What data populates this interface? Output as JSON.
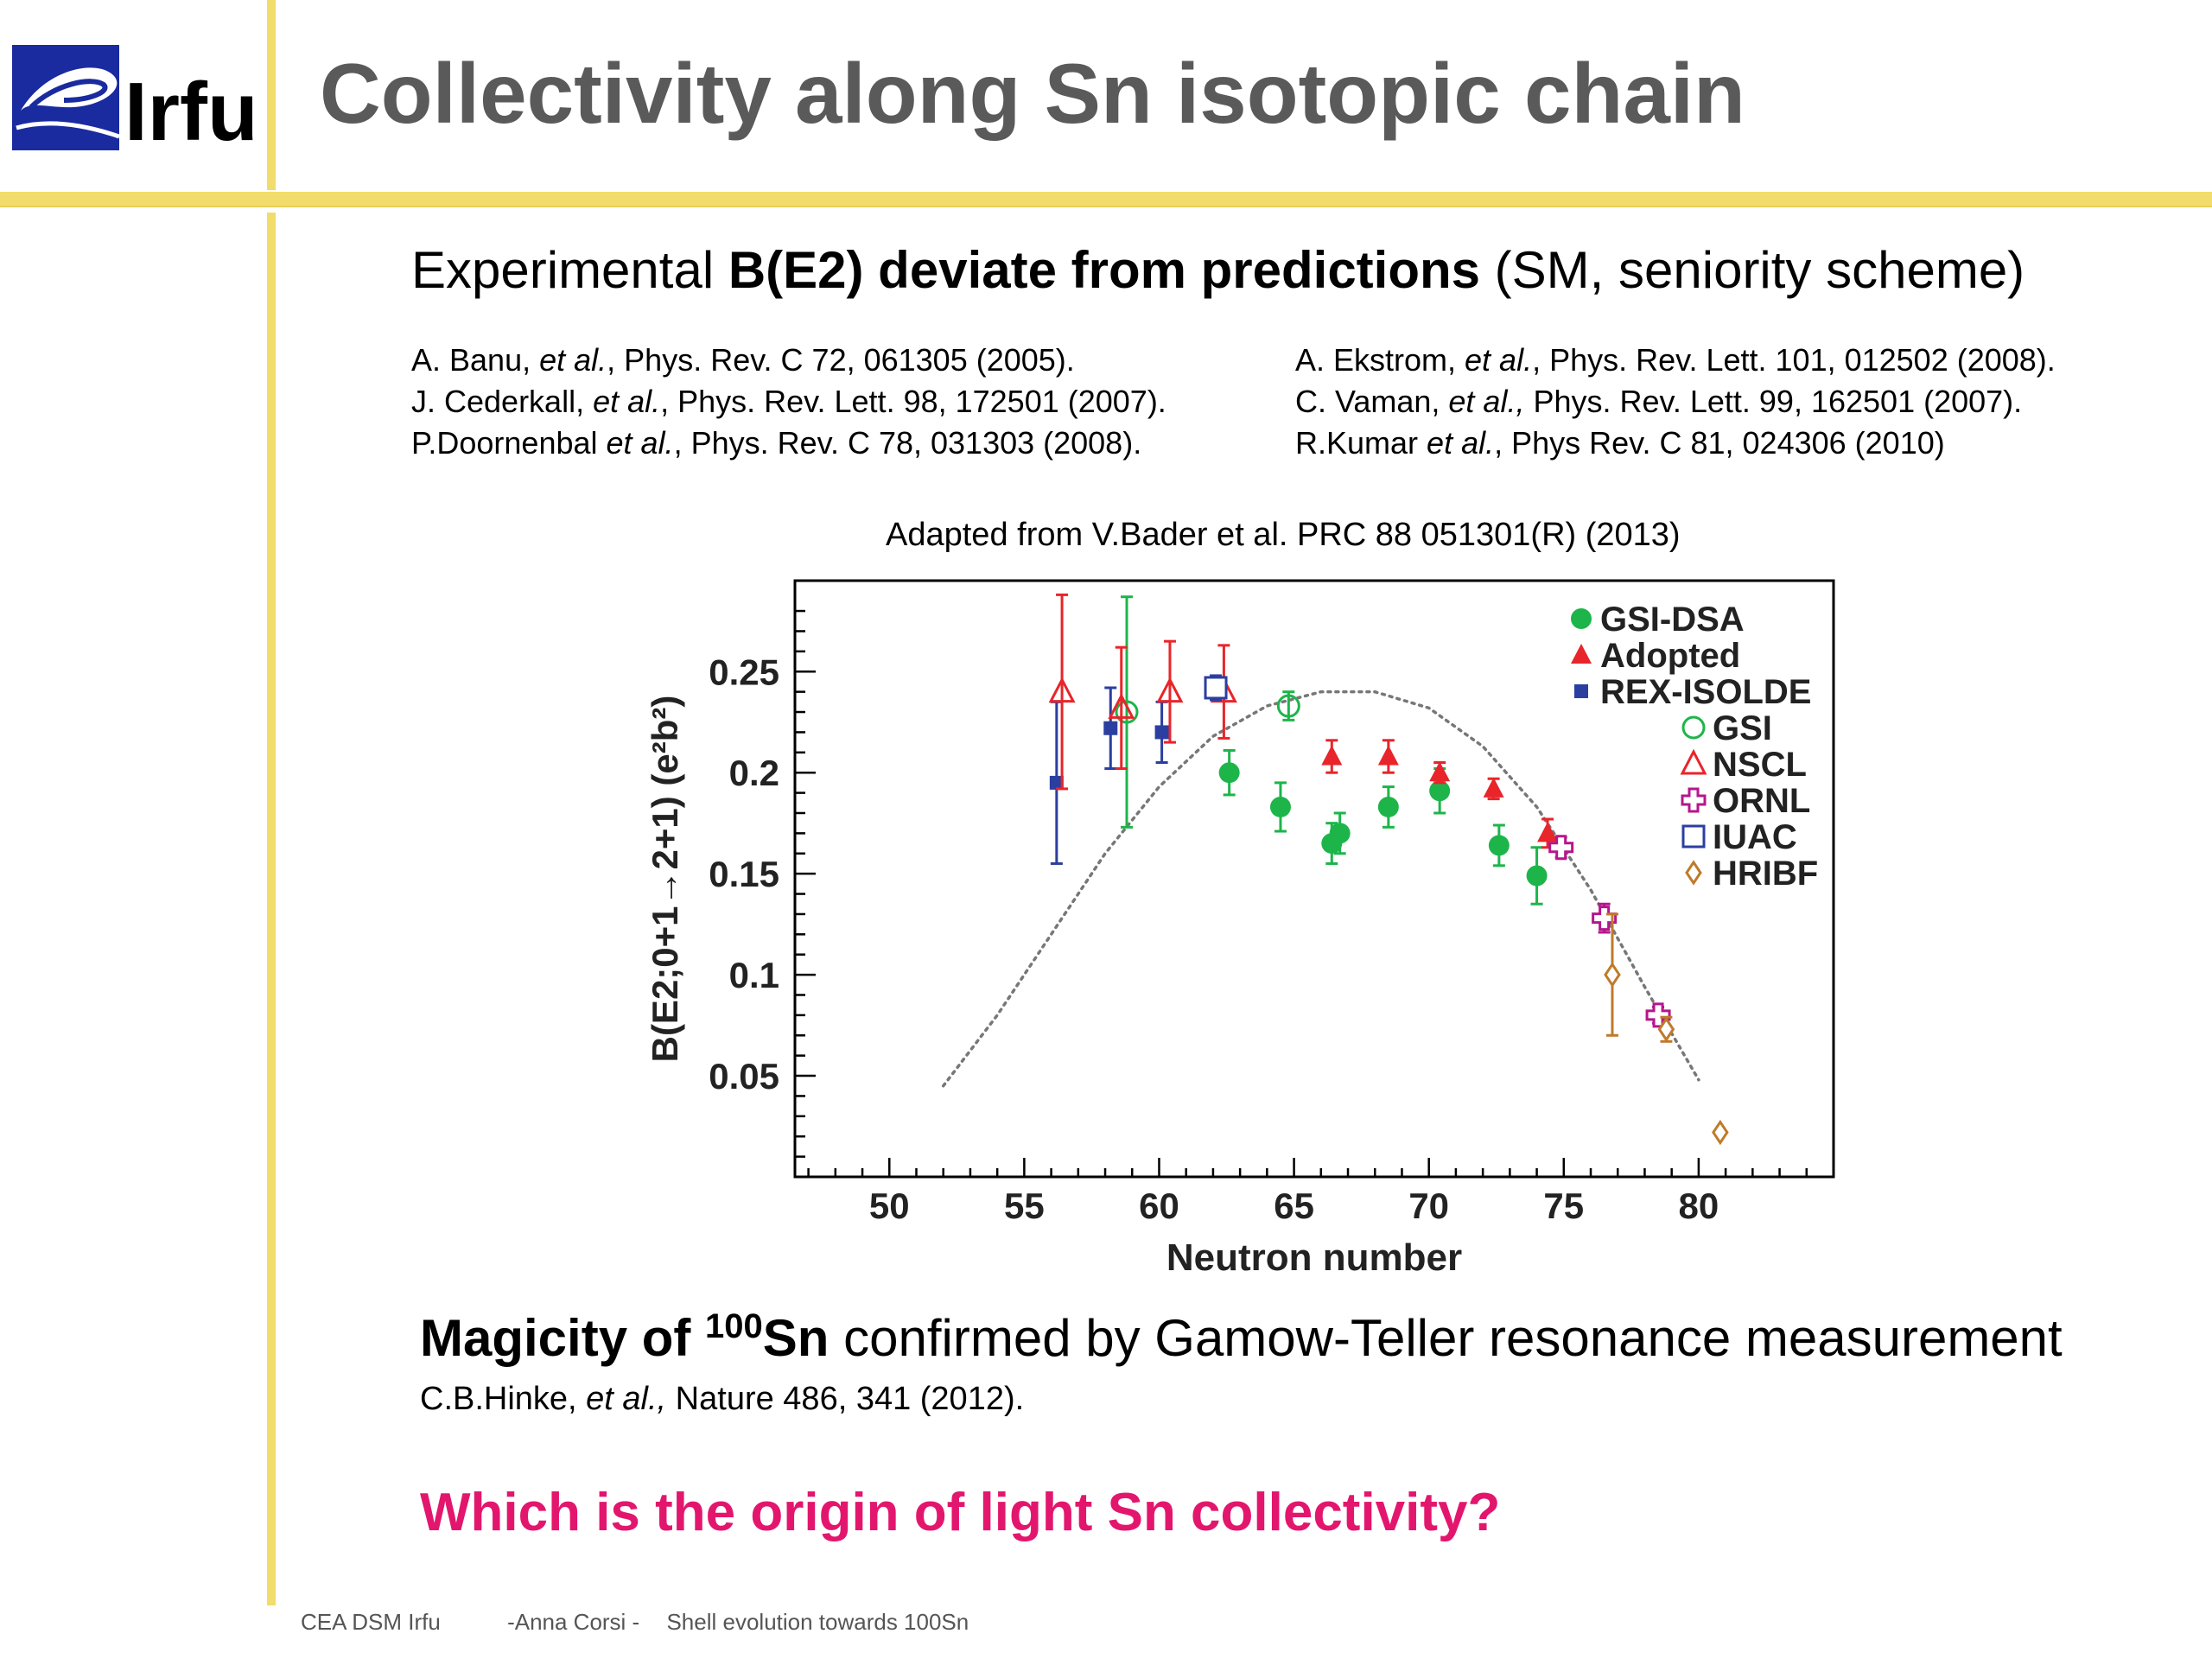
{
  "header": {
    "logo_text": "Irfu",
    "title": "Collectivity along Sn isotopic chain"
  },
  "subhead": {
    "pre": "Experimental ",
    "bold": "B(E2) deviate from predictions",
    "post": " (SM, seniority scheme)"
  },
  "references_left": [
    {
      "a": "A. Banu, ",
      "i": "et al.",
      "b": ", Phys. Rev. C 72, 061305 (2005)."
    },
    {
      "a": "J. Cederkall, ",
      "i": "et al.",
      "b": ", Phys. Rev. Lett. 98, 172501 (2007)."
    },
    {
      "a": "P.Doornenbal ",
      "i": "et al.",
      "b": ", Phys. Rev. C 78, 031303 (2008)."
    }
  ],
  "references_right": [
    {
      "a": "A. Ekstrom, ",
      "i": "et al.",
      "b": ", Phys. Rev. Lett. 101, 012502 (2008)."
    },
    {
      "a": "C. Vaman, ",
      "i": "et al.,",
      "b": " Phys. Rev. Lett. 99, 162501 (2007)."
    },
    {
      "a": "R.Kumar ",
      "i": "et al.",
      "b": ", Phys Rev. C 81, 024306 (2010)"
    }
  ],
  "figure_caption": "Adapted from V.Bader et al. PRC 88 051301(R) (2013)",
  "chart_data": {
    "type": "scatter",
    "xlabel": "Neutron number",
    "ylabel": "B(E2;0+1→2+1) (e²b²)",
    "xlim": [
      46.5,
      85
    ],
    "ylim": [
      0,
      0.295
    ],
    "x_ticks": [
      50,
      55,
      60,
      65,
      70,
      75,
      80
    ],
    "y_ticks": [
      0.05,
      0.1,
      0.15,
      0.2,
      0.25
    ],
    "legend_position": "top-right",
    "series": [
      {
        "name": "GSI-DSA",
        "marker": "filled-circle",
        "color": "#1db54a",
        "points": [
          [
            62.6,
            0.2,
            0.011
          ],
          [
            64.5,
            0.183,
            0.012
          ],
          [
            66.4,
            0.165,
            0.01
          ],
          [
            66.7,
            0.17,
            0.01
          ],
          [
            68.5,
            0.183,
            0.01
          ],
          [
            70.4,
            0.191,
            0.011
          ],
          [
            72.6,
            0.164,
            0.01
          ],
          [
            74,
            0.149,
            0.014
          ]
        ]
      },
      {
        "name": "Adopted",
        "marker": "filled-triangle",
        "color": "#e8252a",
        "points": [
          [
            66.4,
            0.208,
            0.008
          ],
          [
            68.5,
            0.208,
            0.008
          ],
          [
            70.4,
            0.2,
            0.005
          ],
          [
            72.4,
            0.192,
            0.005
          ],
          [
            74.4,
            0.17,
            0.007
          ]
        ]
      },
      {
        "name": "REX-ISOLDE",
        "marker": "filled-square",
        "color": "#2b3fa0",
        "points": [
          [
            56.2,
            0.195,
            0.04
          ],
          [
            58.2,
            0.222,
            0.02
          ],
          [
            60.1,
            0.22,
            0.015
          ]
        ]
      },
      {
        "name": "GSI",
        "marker": "open-circle",
        "color": "#1db54a",
        "points": [
          [
            58.8,
            0.23,
            0.057
          ],
          [
            64.8,
            0.233,
            0.007
          ]
        ]
      },
      {
        "name": "NSCL",
        "marker": "open-triangle",
        "color": "#e8252a",
        "points": [
          [
            56.4,
            0.24,
            0.048
          ],
          [
            58.6,
            0.232,
            0.03
          ],
          [
            60.4,
            0.24,
            0.025
          ],
          [
            62.4,
            0.24,
            0.023
          ]
        ]
      },
      {
        "name": "ORNL",
        "marker": "open-cross",
        "color": "#b5168c",
        "points": [
          [
            74.9,
            0.163,
            0.005
          ],
          [
            76.5,
            0.128,
            0.007
          ],
          [
            78.5,
            0.08,
            0.004
          ]
        ]
      },
      {
        "name": "IUAC",
        "marker": "open-square",
        "color": "#2b3fa0",
        "points": [
          [
            62.1,
            0.242,
            0.006
          ]
        ]
      },
      {
        "name": "HRIBF",
        "marker": "open-diamond",
        "color": "#c07a2a",
        "points": [
          [
            76.8,
            0.1,
            0.03
          ],
          [
            78.8,
            0.073,
            0.006
          ],
          [
            80.8,
            0.022,
            0
          ]
        ]
      }
    ],
    "prediction_curve": {
      "style": "dotted",
      "points": [
        [
          52,
          0.045
        ],
        [
          54,
          0.08
        ],
        [
          56,
          0.12
        ],
        [
          58,
          0.16
        ],
        [
          60,
          0.193
        ],
        [
          62,
          0.218
        ],
        [
          64,
          0.233
        ],
        [
          66,
          0.24
        ],
        [
          68,
          0.24
        ],
        [
          70,
          0.232
        ],
        [
          72,
          0.213
        ],
        [
          74,
          0.183
        ],
        [
          76,
          0.142
        ],
        [
          78,
          0.094
        ],
        [
          80,
          0.048
        ]
      ]
    }
  },
  "magicity": {
    "bold1": "Magicity of ",
    "sup": "100",
    "bold2": "Sn",
    "rest": " confirmed by Gamow-Teller resonance measurement",
    "ref_a": "C.B.Hinke, ",
    "ref_i": "et al.,",
    "ref_b": " Nature 486, 341 (2012)."
  },
  "question": "Which is the origin of light Sn collectivity?",
  "footer": {
    "left": "CEA DSM Irfu",
    "author": "-Anna Corsi -",
    "talk": "Shell evolution towards 100Sn"
  },
  "colors": {
    "accent_bar": "#f2dc6b",
    "title": "#5a5a5a",
    "question": "#e3166e"
  }
}
